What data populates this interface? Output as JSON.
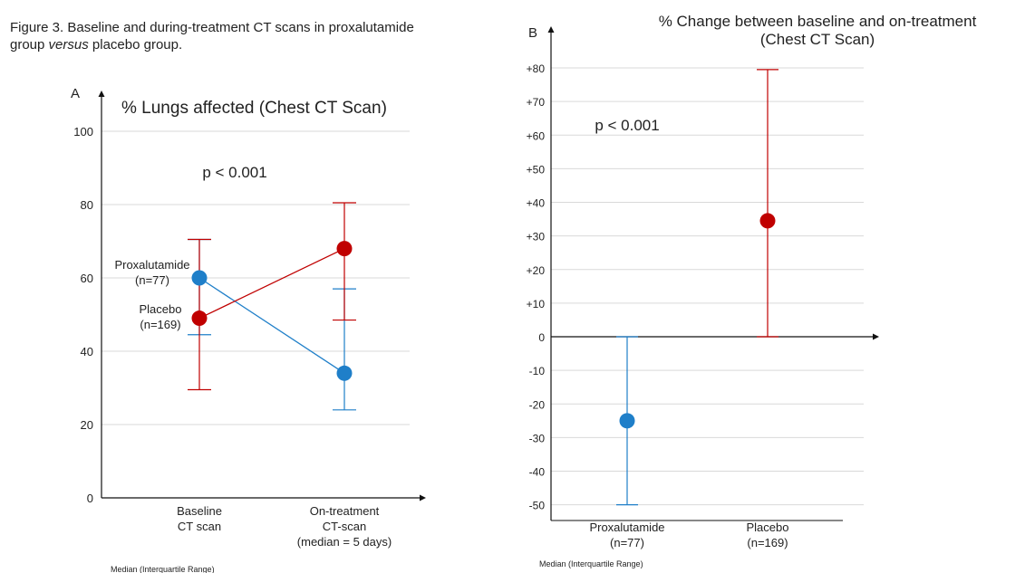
{
  "caption": {
    "before": "Figure 3. Baseline and during-treatment CT scans in proxalutamide group ",
    "italic": "versus",
    "after": " placebo group."
  },
  "chart_data": [
    {
      "panel_label": "A",
      "type": "line",
      "title": "% Lungs affected (Chest CT Scan)",
      "annotation": "p < 0.001",
      "ylim": [
        0,
        100
      ],
      "yticks": [
        "0",
        "20",
        "40",
        "60",
        "80",
        "100"
      ],
      "ytick_values": [
        0,
        20,
        40,
        60,
        80,
        100
      ],
      "categories": [
        [
          "Baseline",
          "CT scan"
        ],
        [
          "On-treatment",
          "CT-scan",
          "(median = 5 days)"
        ]
      ],
      "grid": true,
      "footnote": "Median (Interquartile Range)",
      "series": [
        {
          "name": "Proxalutamide",
          "label_lines": [
            "Proxalutamide",
            "(n=77)"
          ],
          "color": "#1f7fc9",
          "values": [
            60,
            34
          ],
          "lower": [
            44.5,
            24
          ],
          "upper": [
            70.5,
            57
          ]
        },
        {
          "name": "Placebo",
          "label_lines": [
            "Placebo",
            "(n=169)"
          ],
          "color": "#c00000",
          "values": [
            49,
            68
          ],
          "lower": [
            29.5,
            48.5
          ],
          "upper": [
            70.5,
            80.5
          ]
        }
      ]
    },
    {
      "panel_label": "B",
      "type": "scatter",
      "title_lines": [
        "% Change between baseline and on-treatment",
        "(Chest CT Scan)"
      ],
      "annotation": "p < 0.001",
      "ylim": [
        -50,
        80
      ],
      "yticks": [
        "-50",
        "-40",
        "-30",
        "-20",
        "-10",
        "0",
        "+10",
        "+20",
        "+30",
        "+40",
        "+50",
        "+60",
        "+70",
        "+80"
      ],
      "ytick_values": [
        -50,
        -40,
        -30,
        -20,
        -10,
        0,
        10,
        20,
        30,
        40,
        50,
        60,
        70,
        80
      ],
      "grid": true,
      "footnote": "Median (Interquartile Range)",
      "categories": [
        [
          "Proxalutamide",
          "(n=77)"
        ],
        [
          "Placebo",
          "(n=169)"
        ]
      ],
      "points": [
        {
          "category": "Proxalutamide",
          "color": "#1f7fc9",
          "value": -25,
          "lower": -50,
          "upper": 0
        },
        {
          "category": "Placebo",
          "color": "#c00000",
          "value": 34.5,
          "lower": 0,
          "upper": 79.5
        }
      ]
    }
  ]
}
